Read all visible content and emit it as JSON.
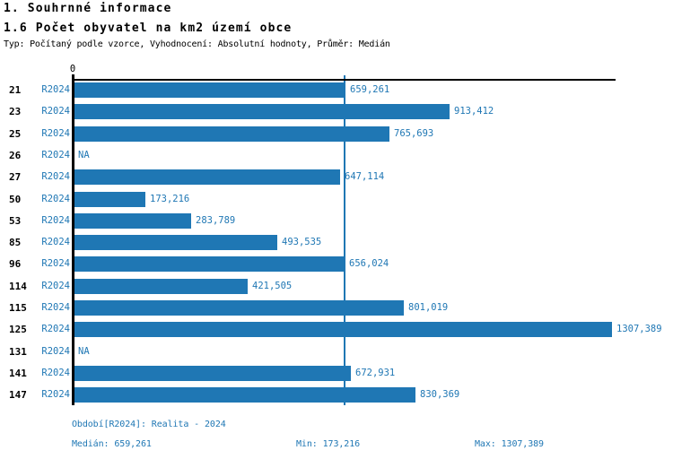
{
  "header": {
    "title": "1. Souhrnné informace",
    "subtitle": "1.6 Počet obyvatel na km2 území obce",
    "meta": "Typ: Počítaný podle vzorce, Vyhodnocení: Absolutní hodnoty, Průměr: Medián"
  },
  "chart_data": {
    "type": "bar",
    "orientation": "horizontal",
    "title": "1.6 Počet obyvatel na km2 území obce",
    "axis_zero_label": "0",
    "series_label": "R2024",
    "categories": [
      "21",
      "23",
      "25",
      "26",
      "27",
      "50",
      "53",
      "85",
      "96",
      "114",
      "115",
      "125",
      "131",
      "141",
      "147"
    ],
    "values": [
      659.261,
      913.412,
      765.693,
      null,
      647.114,
      173.216,
      283.789,
      493.535,
      656.024,
      421.505,
      801.019,
      1307.389,
      null,
      672.931,
      830.369
    ],
    "value_labels": [
      "659,261",
      "913,412",
      "765,693",
      "NA",
      "647,114",
      "173,216",
      "283,789",
      "493,535",
      "656,024",
      "421,505",
      "801,019",
      "1307,389",
      "NA",
      "672,931",
      "830,369"
    ],
    "na_label": "NA",
    "median": 659.261,
    "min": 173.216,
    "max": 1307.389,
    "xlim": [
      0,
      1320
    ],
    "legend_position": "none",
    "grid": false,
    "bar_color": "#1f77b4",
    "text_color": "#1f77b4",
    "axis_color": "#000000"
  },
  "footer": {
    "period": "Období[R2024]: Realita - 2024",
    "median": "Medián: 659,261",
    "min": "Min: 173,216",
    "max": "Max: 1307,389"
  }
}
